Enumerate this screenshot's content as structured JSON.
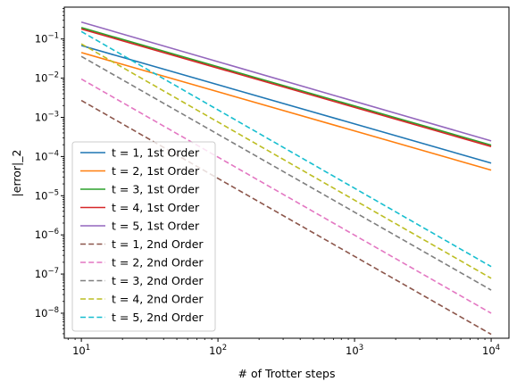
{
  "chart_data": {
    "type": "line",
    "xscale": "log",
    "yscale": "log",
    "xlabel": "# of Trotter steps",
    "ylabel": "|error|_2",
    "xlim": [
      7.5,
      13500
    ],
    "ylim": [
      2.3e-09,
      0.65
    ],
    "grid": false,
    "legend_position": "lower-left",
    "x_ticks": [
      10,
      100,
      1000,
      10000
    ],
    "x_tick_labels": [
      [
        "10",
        "1"
      ],
      [
        "10",
        "2"
      ],
      [
        "10",
        "3"
      ],
      [
        "10",
        "4"
      ]
    ],
    "y_ticks": [
      1e-08,
      1e-07,
      1e-06,
      1e-05,
      0.0001,
      0.001,
      0.01,
      0.1
    ],
    "y_tick_labels": [
      [
        "10",
        "−8"
      ],
      [
        "10",
        "−7"
      ],
      [
        "10",
        "−6"
      ],
      [
        "10",
        "−5"
      ],
      [
        "10",
        "−4"
      ],
      [
        "10",
        "−3"
      ],
      [
        "10",
        "−2"
      ],
      [
        "10",
        "−1"
      ]
    ],
    "series": [
      {
        "name": "t = 1, 1st Order",
        "color": "#1f77b4",
        "dash": "solid",
        "x": [
          10,
          10000
        ],
        "y": [
          0.068,
          6.8e-05
        ]
      },
      {
        "name": "t = 2, 1st Order",
        "color": "#ff7f0e",
        "dash": "solid",
        "x": [
          10,
          10000
        ],
        "y": [
          0.045,
          4.5e-05
        ]
      },
      {
        "name": "t = 3, 1st Order",
        "color": "#2ca02c",
        "dash": "solid",
        "x": [
          10,
          10000
        ],
        "y": [
          0.195,
          0.000195
        ]
      },
      {
        "name": "t = 4, 1st Order",
        "color": "#d62728",
        "dash": "solid",
        "x": [
          10,
          10000
        ],
        "y": [
          0.18,
          0.00018
        ]
      },
      {
        "name": "t = 5, 1st Order",
        "color": "#9467bd",
        "dash": "solid",
        "x": [
          10,
          10000
        ],
        "y": [
          0.27,
          0.00025
        ]
      },
      {
        "name": "t = 1, 2nd Order",
        "color": "#8c564b",
        "dash": "dashed",
        "x": [
          10,
          10000
        ],
        "y": [
          0.0027,
          2.9e-09
        ]
      },
      {
        "name": "t = 2, 2nd Order",
        "color": "#e377c2",
        "dash": "dashed",
        "x": [
          10,
          10000
        ],
        "y": [
          0.0095,
          1e-08
        ]
      },
      {
        "name": "t = 3, 2nd Order",
        "color": "#7f7f7f",
        "dash": "dashed",
        "x": [
          10,
          10000
        ],
        "y": [
          0.036,
          3.9e-08
        ]
      },
      {
        "name": "t = 4, 2nd Order",
        "color": "#bcbd22",
        "dash": "dashed",
        "x": [
          10,
          10000
        ],
        "y": [
          0.075,
          7.8e-08
        ]
      },
      {
        "name": "t = 5, 2nd Order",
        "color": "#17becf",
        "dash": "dashed",
        "x": [
          10,
          10000
        ],
        "y": [
          0.155,
          1.55e-07
        ]
      }
    ]
  }
}
